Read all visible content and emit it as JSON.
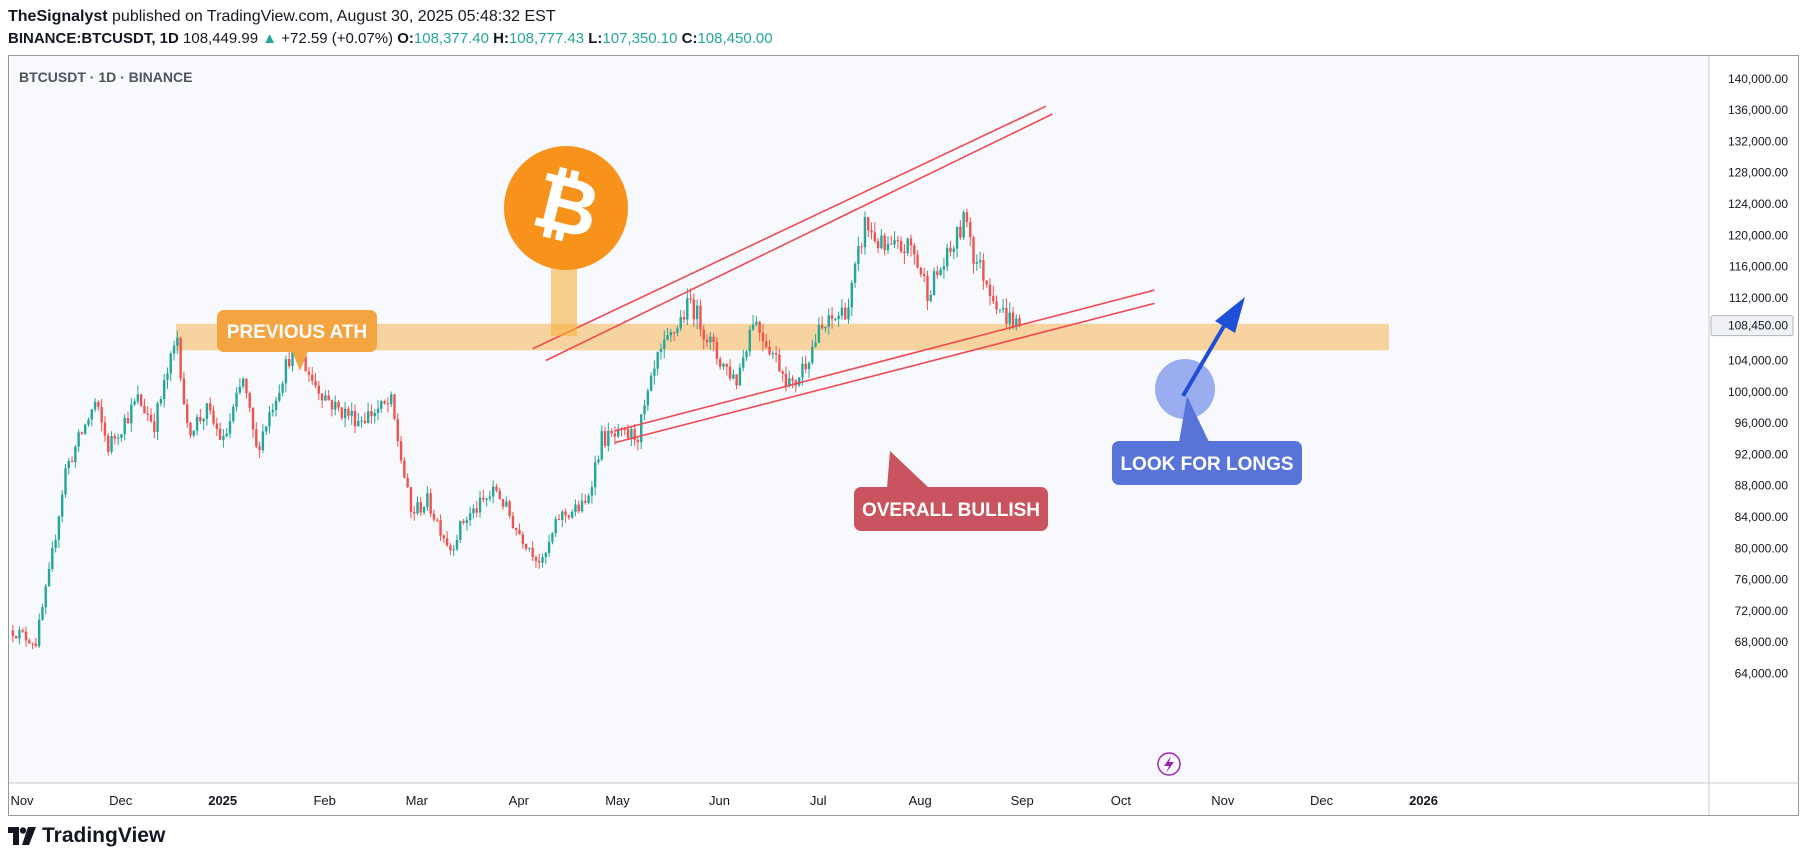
{
  "header": {
    "author": "TheSignalyst",
    "published_text": "published on TradingView.com, August 30, 2025 05:48:32 EST",
    "symbol_line": "BINANCE:BTCUSDT, 1D",
    "last_price": "108,449.99",
    "change_arrow": "▲",
    "change": "+72.59 (+0.07%)",
    "o_label": "O:",
    "o_value": "108,377.40",
    "h_label": "H:",
    "h_value": "108,777.43",
    "l_label": "L:",
    "l_value": "107,350.10",
    "c_label": "C:",
    "c_value": "108,450.00"
  },
  "chart_data": {
    "type": "candlestick",
    "title": "BTCUSDT · 1D · BINANCE",
    "x_ticks": [
      "Nov",
      "Dec",
      "2025",
      "Feb",
      "Mar",
      "Apr",
      "May",
      "Jun",
      "Jul",
      "Aug",
      "Sep",
      "Oct",
      "Nov",
      "Dec",
      "2026"
    ],
    "y_ticks": [
      "140,000.00",
      "136,000.00",
      "132,000.00",
      "128,000.00",
      "124,000.00",
      "120,000.00",
      "116,000.00",
      "112,000.00",
      "108,450.00",
      "104,000.00",
      "100,000.00",
      "96,000.00",
      "92,000.00",
      "88,000.00",
      "84,000.00",
      "80,000.00",
      "76,000.00",
      "72,000.00",
      "68,000.00",
      "64,000.00"
    ],
    "ylim": [
      64000,
      142000
    ],
    "current_price": 108450,
    "price_path": [
      [
        "2024-10-28",
        69500
      ],
      [
        "2024-11-04",
        68000
      ],
      [
        "2024-11-08",
        76500
      ],
      [
        "2024-11-13",
        90000
      ],
      [
        "2024-11-22",
        98500
      ],
      [
        "2024-11-26",
        93000
      ],
      [
        "2024-12-05",
        99000
      ],
      [
        "2024-12-10",
        96000
      ],
      [
        "2024-12-17",
        107000
      ],
      [
        "2024-12-20",
        95000
      ],
      [
        "2024-12-26",
        97500
      ],
      [
        "2024-12-31",
        93500
      ],
      [
        "2025-01-06",
        101500
      ],
      [
        "2025-01-10",
        92500
      ],
      [
        "2025-01-20",
        104500
      ],
      [
        "2025-01-22",
        106000
      ],
      [
        "2025-01-27",
        101500
      ],
      [
        "2025-02-03",
        98000
      ],
      [
        "2025-02-10",
        96500
      ],
      [
        "2025-02-20",
        98500
      ],
      [
        "2025-02-26",
        84500
      ],
      [
        "2025-03-03",
        86000
      ],
      [
        "2025-03-10",
        80000
      ],
      [
        "2025-03-14",
        83500
      ],
      [
        "2025-03-24",
        87500
      ],
      [
        "2025-03-30",
        82500
      ],
      [
        "2025-04-07",
        78000
      ],
      [
        "2025-04-12",
        84000
      ],
      [
        "2025-04-20",
        85500
      ],
      [
        "2025-04-25",
        94000
      ],
      [
        "2025-05-06",
        94500
      ],
      [
        "2025-05-12",
        104000
      ],
      [
        "2025-05-22",
        111500
      ],
      [
        "2025-05-30",
        104500
      ],
      [
        "2025-06-05",
        101500
      ],
      [
        "2025-06-10",
        109500
      ],
      [
        "2025-06-22",
        100500
      ],
      [
        "2025-06-30",
        107500
      ],
      [
        "2025-07-09",
        111000
      ],
      [
        "2025-07-14",
        121500
      ],
      [
        "2025-07-20",
        118000
      ],
      [
        "2025-07-28",
        118500
      ],
      [
        "2025-08-02",
        113000
      ],
      [
        "2025-08-08",
        117000
      ],
      [
        "2025-08-14",
        122500
      ],
      [
        "2025-08-16",
        117500
      ],
      [
        "2025-08-25",
        110000
      ],
      [
        "2025-08-30",
        108450
      ]
    ],
    "horizontal_zone": {
      "low": 105300,
      "high": 108700
    },
    "ascending_channel": [
      {
        "from": [
          "2025-04-04",
          105500
        ],
        "to": [
          "2025-09-07",
          136500
        ]
      },
      {
        "from": [
          "2025-04-08",
          104000
        ],
        "to": [
          "2025-09-09",
          135500
        ]
      }
    ],
    "support_lines": [
      {
        "from": [
          "2025-04-29",
          95000
        ],
        "to": [
          "2025-10-10",
          113000
        ]
      },
      {
        "from": [
          "2025-04-29",
          93500
        ],
        "to": [
          "2025-10-10",
          111300
        ]
      }
    ],
    "annotations": [
      {
        "text": "PREVIOUS ATH",
        "color": "#f5a442"
      },
      {
        "text": "OVERALL BULLISH",
        "color": "#c9535e"
      },
      {
        "text": "LOOK FOR LONGS",
        "color": "#5874d8"
      }
    ],
    "colors": {
      "up": "#26a69a",
      "down": "#ef5350",
      "zone": "#f5b041",
      "channel": "#ef4a52",
      "arrow": "#1f4fd6",
      "bitcoin": "#f7931a"
    }
  }
}
